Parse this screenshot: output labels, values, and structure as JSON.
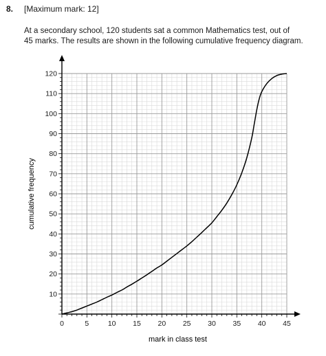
{
  "question": {
    "number": "8.",
    "marks": "[Maximum mark: 12]",
    "text_line1": "At a secondary school, 120 students sat a common Mathematics test, out of",
    "text_line2": "45 marks. The results are shown in the following cumulative frequency diagram."
  },
  "chart_data": {
    "type": "line",
    "title": "",
    "xlabel": "mark in class test",
    "ylabel": "cumulative frequency",
    "xlim": [
      0,
      45
    ],
    "ylim": [
      0,
      120
    ],
    "x_ticks": [
      0,
      5,
      10,
      15,
      20,
      25,
      30,
      35,
      40,
      45
    ],
    "y_ticks": [
      10,
      20,
      30,
      40,
      50,
      60,
      70,
      80,
      90,
      100,
      110,
      120
    ],
    "grid": true,
    "series": [
      {
        "points": [
          [
            0,
            0
          ],
          [
            1,
            0.6
          ],
          [
            2,
            1.2
          ],
          [
            3,
            2
          ],
          [
            4,
            3
          ],
          [
            5,
            4
          ],
          [
            6,
            5
          ],
          [
            7,
            6
          ],
          [
            8,
            7.2
          ],
          [
            9,
            8.4
          ],
          [
            10,
            9.5
          ],
          [
            11,
            10.8
          ],
          [
            12,
            12
          ],
          [
            13,
            13.5
          ],
          [
            14,
            14.9
          ],
          [
            15,
            16.4
          ],
          [
            16,
            18
          ],
          [
            17,
            19.6
          ],
          [
            18,
            21.3
          ],
          [
            19,
            23
          ],
          [
            20,
            24.5
          ],
          [
            21,
            26.4
          ],
          [
            22,
            28.3
          ],
          [
            23,
            30.2
          ],
          [
            24,
            32.1
          ],
          [
            25,
            34
          ],
          [
            26,
            36.1
          ],
          [
            27,
            38.4
          ],
          [
            28,
            40.7
          ],
          [
            29,
            43.1
          ],
          [
            30,
            45.5
          ],
          [
            31,
            48.6
          ],
          [
            32,
            51.8
          ],
          [
            33,
            55.4
          ],
          [
            34,
            59.6
          ],
          [
            35,
            64.5
          ],
          [
            36,
            70.5
          ],
          [
            37,
            78
          ],
          [
            38,
            88
          ],
          [
            38.5,
            95
          ],
          [
            39,
            102
          ],
          [
            39.5,
            107.5
          ],
          [
            40,
            111
          ],
          [
            41,
            115
          ],
          [
            42,
            117.5
          ],
          [
            43,
            119
          ],
          [
            44,
            119.7
          ],
          [
            45,
            120
          ]
        ]
      }
    ]
  }
}
